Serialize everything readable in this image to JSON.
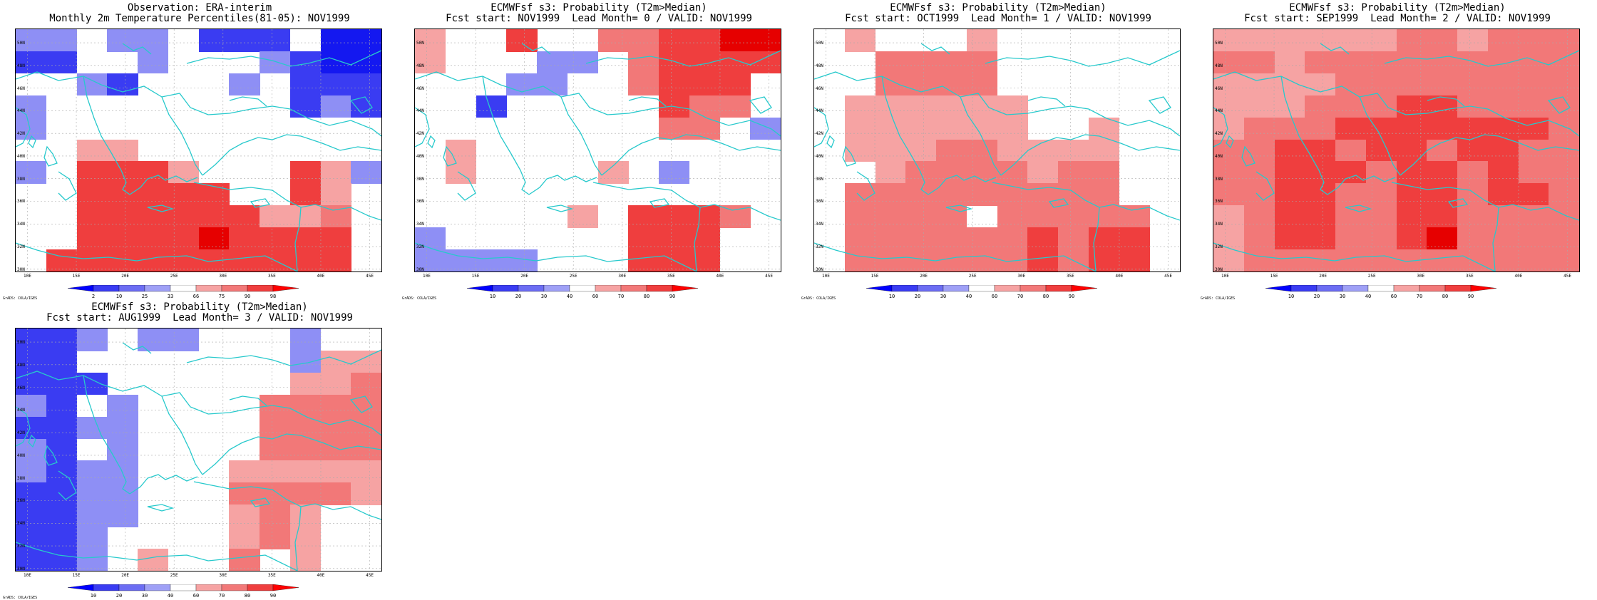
{
  "panels": [
    {
      "id": "obs",
      "title_line1": "Observation: ERA-interim",
      "title_line2": "Monthly 2m Temperature Percentiles(81-05): NOV1999",
      "legend_labels": [
        "2",
        "10",
        "25",
        "33",
        "66",
        "75",
        "90",
        "98"
      ],
      "credit": "GrADS: COLA/IGES",
      "grid": [
        "bbWbbWBBBWLL",
        "BBWWbWWWbBLL",
        "WWbBWWWbWBBB",
        "bWWWWWWWWBbB",
        "bWWWWWWWWWWW",
        "WWppWWWWWWWW",
        "bWRRRpWWWRpb",
        "WWRRRRRWWRpW",
        "WWRRRRRRppPW",
        "WWRRRRDRRRRW",
        "WRRRRRRRRRRW"
      ]
    },
    {
      "id": "lead0",
      "title_line1": "ECMWFsf s3: Probability (T2m>Median)",
      "title_line2": "Fcst start: NOV1999  Lead Month= 0 / VALID: NOV1999",
      "legend_labels": [
        "10",
        "20",
        "30",
        "40",
        "60",
        "70",
        "80",
        "90"
      ],
      "credit": "GrADS: COLA/IGES",
      "grid": [
        "pWWRWWPPRRDD",
        "pWWWbbWPRRRR",
        "WWWbbWWPRRRW",
        "WWBWWWWWRPPW",
        "WWWWWWWWPPWb",
        "WpWWWWWWWWWW",
        "WpWWWWpWbWWW",
        "WWWWWWWWWWWW",
        "WWWWWpWRRRPW",
        "bWWWWWWRRRWW",
        "bbbbWWWRRRWW"
      ]
    },
    {
      "id": "lead1",
      "title_line1": "ECMWFsf s3: Probability (T2m>Median)",
      "title_line2": "Fcst start: OCT1999  Lead Month= 1 / VALID: NOV1999",
      "legend_labels": [
        "10",
        "20",
        "30",
        "40",
        "60",
        "70",
        "80",
        "90"
      ],
      "credit": "GrADS: COLA/IGES",
      "grid": [
        "WpWWWpWWWWWW",
        "WWPPPPWWWWWW",
        "WWPPPPWWWWWW",
        "WppppppWWWWW",
        "WppppppWWpWW",
        "WpppPPppppWW",
        "WWpPPPPpPPWW",
        "WPPPPPPPPPWW",
        "WPPPPWPPPPPW",
        "WPPPPPPRPRRW",
        "WPPPPPPRPRRW"
      ]
    },
    {
      "id": "lead2",
      "title_line1": "ECMWFsf s3: Probability (T2m>Median)",
      "title_line2": "Fcst start: SEP1999  Lead Month= 2 / VALID: NOV1999",
      "legend_labels": [
        "10",
        "20",
        "30",
        "40",
        "60",
        "70",
        "80",
        "90"
      ],
      "credit": "GrADS: COLA/IGES",
      "grid": [
        "ppppppPPpPPP",
        "PPpPPPPPPPPP",
        "ppppPPPPPPPP",
        "pppPPPRRPPPP",
        "pPPPRRRRRRRP",
        "PPRRPRRPRRPP",
        "PPRRRPRRPRPP",
        "PPRRPPRRPRRP",
        "pPRRPPRRPPPP",
        "pPRRPPRDPPPP",
        "pPPPPPPPPPPP"
      ]
    },
    {
      "id": "lead3",
      "title_line1": "ECMWFsf s3: Probability (T2m>Median)",
      "title_line2": "Fcst start: AUG1999  Lead Month= 3 / VALID: NOV1999",
      "legend_labels": [
        "10",
        "20",
        "30",
        "40",
        "60",
        "70",
        "80",
        "90"
      ],
      "credit": "GrADS: COLA/IGES",
      "grid": [
        "BBbWbbWWWbWW",
        "BBWWWWWWWbpp",
        "BBBWWWWWWppP",
        "bBWbWWWWPPPP",
        "BBbbWWWWPPPP",
        "bBWbWWWWPPPP",
        "bBbbWWWppppp",
        "BBbbWWWPPPPp",
        "BBbbWWWpPpWW",
        "BBbWWWWpPpWW",
        "BBbWpWWPWpWW"
      ]
    }
  ],
  "map_axes": {
    "lon_labels": [
      "10E",
      "15E",
      "20E",
      "25E",
      "30E",
      "35E",
      "40E",
      "45E"
    ],
    "lon_values": [
      10,
      15,
      20,
      25,
      30,
      35,
      40,
      45
    ],
    "lat_labels": [
      "50N",
      "48N",
      "46N",
      "44N",
      "42N",
      "40N",
      "38N",
      "36N",
      "34N",
      "32N",
      "30N"
    ],
    "lat_values": [
      50,
      48,
      46,
      44,
      42,
      40,
      38,
      36,
      34,
      32,
      30
    ],
    "lon_range": [
      8.8,
      46.2
    ],
    "lat_range": [
      29.8,
      51.2
    ]
  },
  "colors": {
    "B": "#3a3cf2",
    "b": "#8e8ff5",
    "L": "#1418f0",
    "W": "#ffffff",
    "p": "#f6a3a3",
    "P": "#f27878",
    "R": "#ef3e3e",
    "D": "#e60000",
    "coast": "#27c9cc"
  },
  "colorbar_colors": [
    "#0000ff",
    "#3a3cf2",
    "#6c6df3",
    "#9fa0f6",
    "#ffffff",
    "#f6a3a3",
    "#f27878",
    "#ef3e3e",
    "#ff0000"
  ]
}
